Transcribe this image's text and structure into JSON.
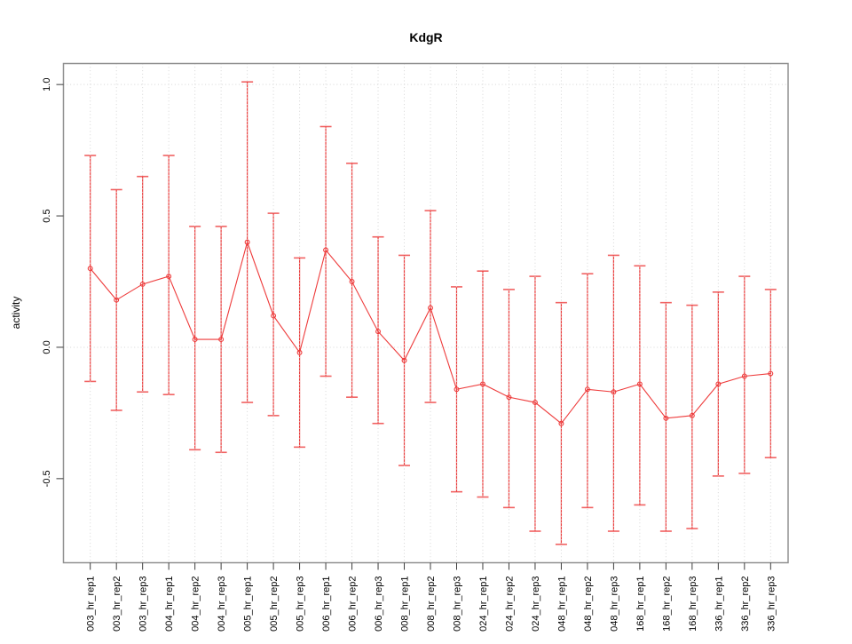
{
  "page": {
    "background": "#ffffff"
  },
  "chart_data": {
    "type": "line",
    "title": "KdgR",
    "xlabel": "",
    "ylabel": "activity",
    "legend": "none",
    "grid": {
      "horizontal_at": [
        0.0,
        1.0
      ],
      "vertical": "every-category",
      "style": "dotted"
    },
    "marker": "open-circle",
    "error_bars": true,
    "ylim": [
      -0.82,
      1.08
    ],
    "yticks": [
      -0.5,
      0.0,
      0.5,
      1.0
    ],
    "ytick_labels": [
      "-0.5",
      "0.0",
      "0.5",
      "1.0"
    ],
    "categories": [
      "003_hr_rep1",
      "003_hr_rep2",
      "003_hr_rep3",
      "004_hr_rep1",
      "004_hr_rep2",
      "004_hr_rep3",
      "005_hr_rep1",
      "005_hr_rep2",
      "005_hr_rep3",
      "006_hr_rep1",
      "006_hr_rep2",
      "006_hr_rep3",
      "008_hr_rep1",
      "008_hr_rep2",
      "008_hr_rep3",
      "024_hr_rep1",
      "024_hr_rep2",
      "024_hr_rep3",
      "048_hr_rep1",
      "048_hr_rep2",
      "048_hr_rep3",
      "168_hr_rep1",
      "168_hr_rep2",
      "168_hr_rep3",
      "336_hr_rep1",
      "336_hr_rep2",
      "336_hr_rep3"
    ],
    "series": [
      {
        "name": "KdgR activity",
        "values": [
          0.3,
          0.18,
          0.24,
          0.27,
          0.03,
          0.03,
          0.4,
          0.12,
          -0.02,
          0.37,
          0.25,
          0.06,
          -0.05,
          0.15,
          -0.16,
          -0.14,
          -0.19,
          -0.21,
          -0.29,
          -0.16,
          -0.17,
          -0.14,
          -0.27,
          -0.26,
          -0.14,
          -0.11,
          -0.1
        ],
        "lower": [
          -0.13,
          -0.24,
          -0.17,
          -0.18,
          -0.39,
          -0.4,
          -0.21,
          -0.26,
          -0.38,
          -0.11,
          -0.19,
          -0.29,
          -0.45,
          -0.21,
          -0.55,
          -0.57,
          -0.61,
          -0.7,
          -0.75,
          -0.61,
          -0.7,
          -0.6,
          -0.7,
          -0.69,
          -0.49,
          -0.48,
          -0.42
        ],
        "upper": [
          0.73,
          0.6,
          0.65,
          0.73,
          0.46,
          0.46,
          1.01,
          0.51,
          0.34,
          0.84,
          0.7,
          0.42,
          0.35,
          0.52,
          0.23,
          0.29,
          0.22,
          0.27,
          0.17,
          0.28,
          0.35,
          0.31,
          0.17,
          0.16,
          0.21,
          0.27,
          0.22
        ]
      }
    ],
    "colors": {
      "series": "#ee3b3b",
      "grid": "#d6d6d6",
      "box": "#909090",
      "tick": "#3c3c3c",
      "text": "#000000"
    }
  }
}
